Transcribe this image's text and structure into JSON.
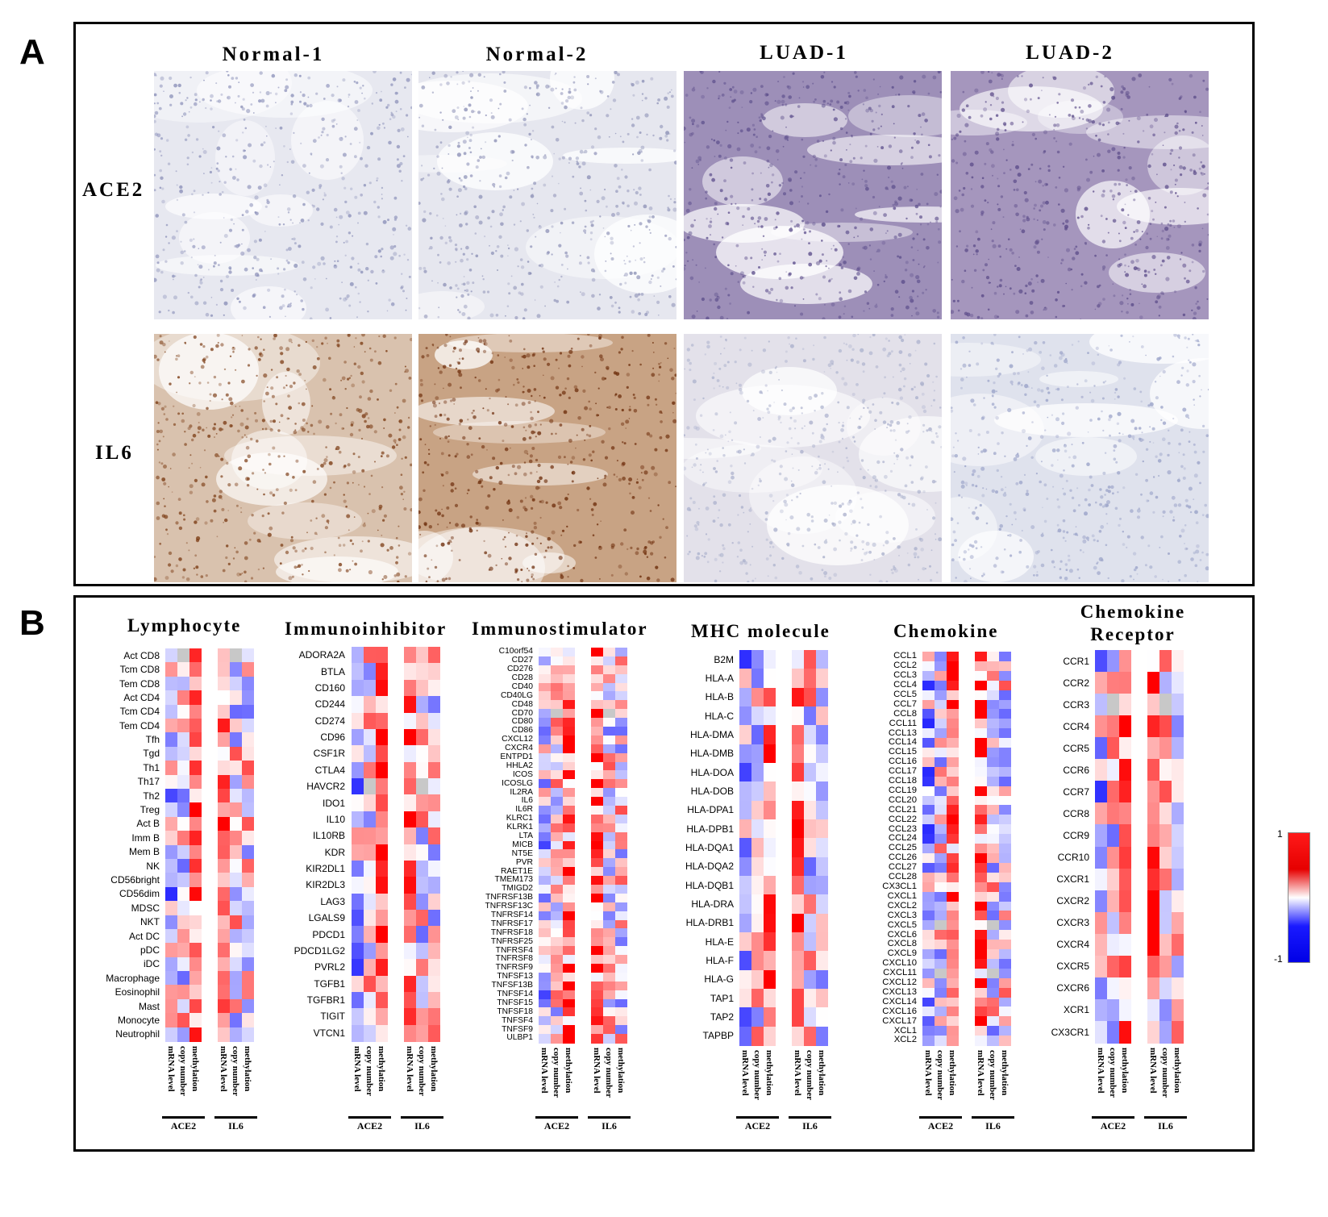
{
  "panel_a": {
    "letter": "A",
    "columns": [
      "Normal-1",
      "Normal-2",
      "LUAD-1",
      "LUAD-2"
    ],
    "rows": [
      "ACE2",
      "IL6"
    ]
  },
  "panel_b": {
    "letter": "B",
    "column_labels": [
      "mRNA level",
      "copy number",
      "methylation",
      "mRNA level",
      "copy number",
      "methylation"
    ],
    "groups": [
      "ACE2",
      "IL6"
    ],
    "scale": {
      "max": "1",
      "min": "-1"
    },
    "categories": [
      {
        "title": "Lymphocyte",
        "rows": [
          "Act CD8",
          "Tcm CD8",
          "Tem CD8",
          "Act CD4",
          "Tcm CD4",
          "Tem CD4",
          "Tfh",
          "Tgd",
          "Th1",
          "Th17",
          "Th2",
          "Treg",
          "Act B",
          "Imm B",
          "Mem B",
          "NK",
          "CD56bright",
          "CD56dim",
          "MDSC",
          "NKT",
          "Act DC",
          "pDC",
          "iDC",
          "Macrophage",
          "Eosinophil",
          "Mast",
          "Monocyte",
          "Neutrophil"
        ]
      },
      {
        "title": "Immunoinhibitor",
        "rows": [
          "ADORA2A",
          "BTLA",
          "CD160",
          "CD244",
          "CD274",
          "CD96",
          "CSF1R",
          "CTLA4",
          "HAVCR2",
          "IDO1",
          "IL10",
          "IL10RB",
          "KDR",
          "KIR2DL1",
          "KIR2DL3",
          "LAG3",
          "LGALS9",
          "PDCD1",
          "PDCD1LG2",
          "PVRL2",
          "TGFB1",
          "TGFBR1",
          "TIGIT",
          "VTCN1"
        ]
      },
      {
        "title": "Immunostimulator",
        "rows": [
          "C10orf54",
          "CD27",
          "CD276",
          "CD28",
          "CD40",
          "CD40LG",
          "CD48",
          "CD70",
          "CD80",
          "CD86",
          "CXCL12",
          "CXCR4",
          "ENTPD1",
          "HHLA2",
          "ICOS",
          "ICOSLG",
          "IL2RA",
          "IL6",
          "IL6R",
          "KLRC1",
          "KLRK1",
          "LTA",
          "MICB",
          "NT5E",
          "PVR",
          "RAET1E",
          "TMEM173",
          "TMIGD2",
          "TNFRSF13B",
          "TNFRSF13C",
          "TNFRSF14",
          "TNFRSF17",
          "TNFRSF18",
          "TNFRSF25",
          "TNFRSF4",
          "TNFRSF8",
          "TNFRSF9",
          "TNFSF13",
          "TNFSF13B",
          "TNFSF14",
          "TNFSF15",
          "TNFSF18",
          "TNFSF4",
          "TNFSF9",
          "ULBP1"
        ]
      },
      {
        "title": "MHC molecule",
        "rows": [
          "B2M",
          "HLA-A",
          "HLA-B",
          "HLA-C",
          "HLA-DMA",
          "HLA-DMB",
          "HLA-DOA",
          "HLA-DOB",
          "HLA-DPA1",
          "HLA-DPB1",
          "HLA-DQA1",
          "HLA-DQA2",
          "HLA-DQB1",
          "HLA-DRA",
          "HLA-DRB1",
          "HLA-E",
          "HLA-F",
          "HLA-G",
          "TAP1",
          "TAP2",
          "TAPBP"
        ]
      },
      {
        "title": "Chemokine",
        "rows": [
          "CCL1",
          "CCL2",
          "CCL3",
          "CCL4",
          "CCL5",
          "CCL7",
          "CCL8",
          "CCL11",
          "CCL13",
          "CCL14",
          "CCL15",
          "CCL16",
          "CCL17",
          "CCL18",
          "CCL19",
          "CCL20",
          "CCL21",
          "CCL22",
          "CCL23",
          "CCL24",
          "CCL25",
          "CCL26",
          "CCL27",
          "CCL28",
          "CX3CL1",
          "CXCL1",
          "CXCL2",
          "CXCL3",
          "CXCL5",
          "CXCL6",
          "CXCL8",
          "CXCL9",
          "CXCL10",
          "CXCL11",
          "CXCL12",
          "CXCL13",
          "CXCL14",
          "CXCL16",
          "CXCL17",
          "XCL1",
          "XCL2"
        ]
      },
      {
        "title": "Chemokine Receptor",
        "rows": [
          "CCR1",
          "CCR2",
          "CCR3",
          "CCR4",
          "CCR5",
          "CCR6",
          "CCR7",
          "CCR8",
          "CCR9",
          "CCR10",
          "CXCR1",
          "CXCR2",
          "CXCR3",
          "CXCR4",
          "CXCR5",
          "CXCR6",
          "XCR1",
          "CX3CR1"
        ]
      }
    ]
  }
}
